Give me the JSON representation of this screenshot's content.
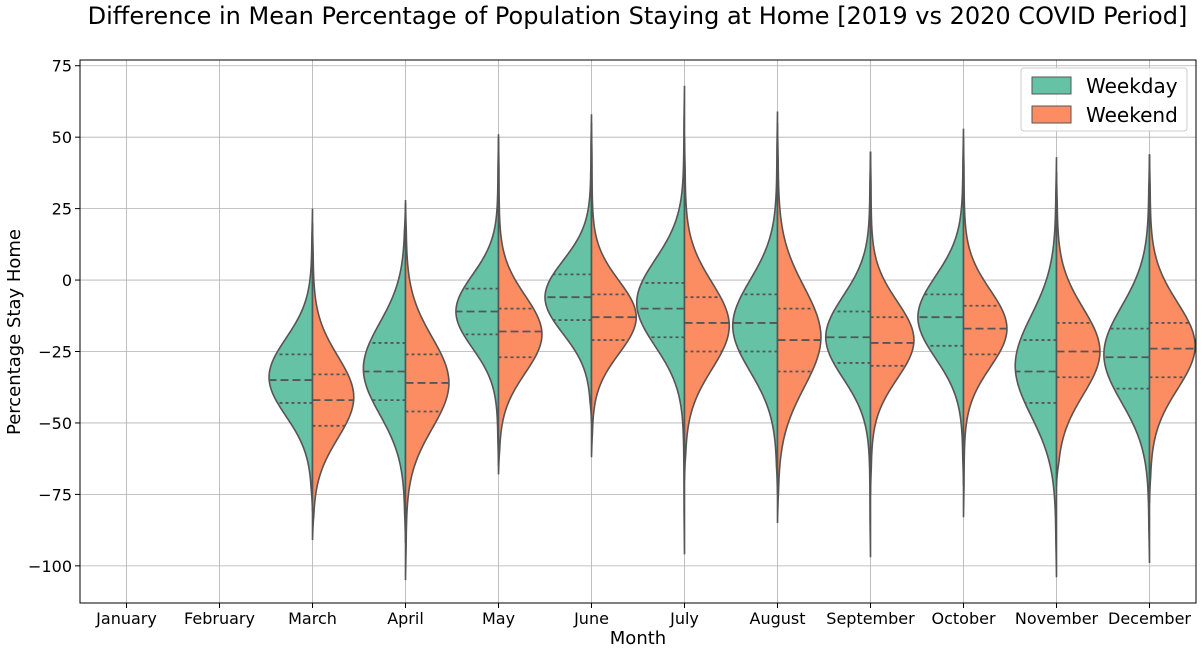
{
  "chart_data": {
    "type": "violin",
    "title": "Difference in Mean Percentage of Population Staying at Home [2019 vs 2020 COVID Period]",
    "xlabel": "Month",
    "ylabel": "Percentage Stay Home",
    "categories": [
      "January",
      "February",
      "March",
      "April",
      "May",
      "June",
      "July",
      "August",
      "September",
      "October",
      "November",
      "December"
    ],
    "ylim": [
      -113,
      77
    ],
    "yticks": [
      75,
      50,
      25,
      0,
      -25,
      -50,
      -75,
      -100
    ],
    "ytick_labels": [
      "75",
      "50",
      "25",
      "0",
      "−25",
      "−50",
      "−75",
      "−100"
    ],
    "grid": true,
    "split": true,
    "inner": "quartile",
    "legend": {
      "position": "top-right"
    },
    "series": [
      {
        "name": "Weekday",
        "color": "#66c2a5",
        "violins": [
          null,
          null,
          {
            "min": -81,
            "max": 25,
            "q1": -43,
            "median": -35,
            "q3": -26,
            "mode": -34,
            "width": 1.0
          },
          {
            "min": -92,
            "max": 27,
            "q1": -42,
            "median": -32,
            "q3": -22,
            "mode": -31,
            "width": 0.97
          },
          {
            "min": -65,
            "max": 50,
            "q1": -19,
            "median": -11,
            "q3": -3,
            "mode": -11,
            "width": 0.98
          },
          {
            "min": -50,
            "max": 58,
            "q1": -14,
            "median": -6,
            "q3": 2,
            "mode": -6,
            "width": 1.07
          },
          {
            "min": -96,
            "max": 68,
            "q1": -20,
            "median": -10,
            "q3": -1,
            "mode": -8,
            "width": 1.1
          },
          {
            "min": -75,
            "max": 59,
            "q1": -25,
            "median": -15,
            "q3": -5,
            "mode": -16,
            "width": 1.03
          },
          {
            "min": -97,
            "max": 45,
            "q1": -29,
            "median": -20,
            "q3": -11,
            "mode": -20,
            "width": 1.03
          },
          {
            "min": -72,
            "max": 53,
            "q1": -23,
            "median": -13,
            "q3": -5,
            "mode": -13,
            "width": 1.05
          },
          {
            "min": -104,
            "max": 43,
            "q1": -43,
            "median": -32,
            "q3": -21,
            "mode": -30,
            "width": 0.95
          },
          {
            "min": -99,
            "max": 44,
            "q1": -38,
            "median": -27,
            "q3": -17,
            "mode": -26,
            "width": 1.05
          }
        ]
      },
      {
        "name": "Weekend",
        "color": "#fc8d62",
        "violins": [
          null,
          null,
          {
            "min": -91,
            "max": 20,
            "q1": -51,
            "median": -42,
            "q3": -33,
            "mode": -41,
            "width": 0.95
          },
          {
            "min": -105,
            "max": 28,
            "q1": -46,
            "median": -36,
            "q3": -26,
            "mode": -36,
            "width": 1.0
          },
          {
            "min": -68,
            "max": 51,
            "q1": -27,
            "median": -18,
            "q3": -10,
            "mode": -19,
            "width": 1.0
          },
          {
            "min": -62,
            "max": 55,
            "q1": -21,
            "median": -13,
            "q3": -5,
            "mode": -13,
            "width": 1.03
          },
          {
            "min": -70,
            "max": 50,
            "q1": -25,
            "median": -15,
            "q3": -6,
            "mode": -16,
            "width": 1.03
          },
          {
            "min": -85,
            "max": 55,
            "q1": -32,
            "median": -21,
            "q3": -10,
            "mode": -20,
            "width": 1.0
          },
          {
            "min": -75,
            "max": 45,
            "q1": -30,
            "median": -22,
            "q3": -13,
            "mode": -21,
            "width": 1.0
          },
          {
            "min": -83,
            "max": 50,
            "q1": -26,
            "median": -17,
            "q3": -9,
            "mode": -17,
            "width": 1.0
          },
          {
            "min": -72,
            "max": 38,
            "q1": -34,
            "median": -25,
            "q3": -15,
            "mode": -25,
            "width": 1.0
          },
          {
            "min": -78,
            "max": 44,
            "q1": -34,
            "median": -24,
            "q3": -15,
            "mode": -23,
            "width": 1.05
          }
        ]
      }
    ]
  }
}
